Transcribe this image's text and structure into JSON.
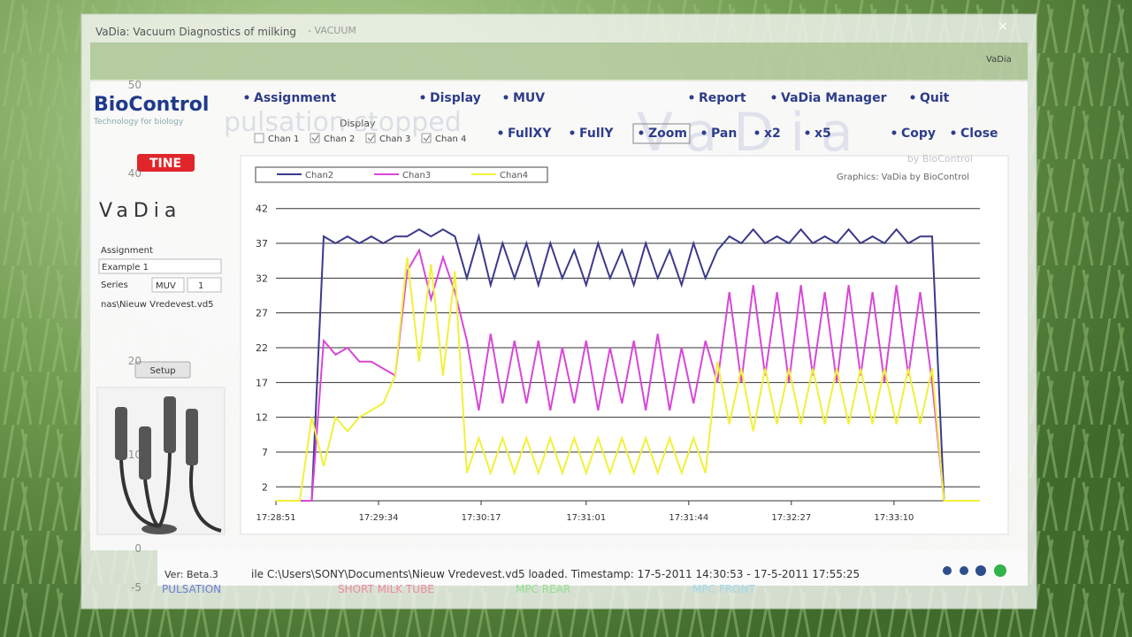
{
  "window": {
    "title": "VaDia: Vacuum Diagnostics of milking",
    "subtitle": "- VACUUM",
    "corner": "VaDia",
    "menu": [
      "Assignment",
      "Display",
      "MUV",
      "Report",
      "VaDia Manager",
      "Quit"
    ],
    "toolbar": [
      "FullXY",
      "FullY",
      "Zoom",
      "Pan",
      "x2",
      "x5",
      "Copy",
      "Close"
    ],
    "display": {
      "label": "Display",
      "channels": [
        "Chan 1",
        "Chan 2",
        "Chan 3",
        "Chan 4"
      ]
    },
    "sidebar": {
      "brand": "BioControl",
      "tagline": "Technology for biology",
      "partner": "TINE",
      "product": "VaDia",
      "assignment_label": "Assignment",
      "assignment_value": "Example 1",
      "series_label": "Series",
      "series_type": "MUV",
      "series_number": "1",
      "file": "nas\\Nieuw Vredevest.vd5",
      "setup": "Setup"
    },
    "status": {
      "version": "Ver: Beta.3",
      "message": "ile C:\\Users\\SONY\\Documents\\Nieuw Vredevest.vd5 loaded. Timestamp: 17-5-2011 14:30:53 - 17-5-2011 17:55:25"
    },
    "credit": "Graphics: VaDia by BioControl",
    "watermark_sub": "by BioControl"
  },
  "overlay": {
    "caption": "pulsation stopped",
    "labels": [
      "PULSATION",
      "SHORT MILK TUBE",
      "MPC REAR",
      "MPC FRONT"
    ],
    "ticks": [
      "50",
      "40",
      "20",
      "10",
      "0",
      "-5"
    ]
  },
  "chart_data": {
    "type": "line",
    "x": [
      "17:28:51",
      "17:28:56",
      "17:29:01",
      "17:29:06",
      "17:29:11",
      "17:29:16",
      "17:29:21",
      "17:29:26",
      "17:29:31",
      "17:29:36",
      "17:29:41",
      "17:29:46",
      "17:29:51",
      "17:29:56",
      "17:30:01",
      "17:30:06",
      "17:30:11",
      "17:30:16",
      "17:30:21",
      "17:30:26",
      "17:30:31",
      "17:30:36",
      "17:30:41",
      "17:30:46",
      "17:30:51",
      "17:30:56",
      "17:31:01",
      "17:31:06",
      "17:31:11",
      "17:31:16",
      "17:31:21",
      "17:31:26",
      "17:31:31",
      "17:31:36",
      "17:31:41",
      "17:31:46",
      "17:31:51",
      "17:31:56",
      "17:32:01",
      "17:32:06",
      "17:32:11",
      "17:32:16",
      "17:32:21",
      "17:32:26",
      "17:32:31",
      "17:32:36",
      "17:32:41",
      "17:32:46",
      "17:32:51",
      "17:32:56",
      "17:33:01",
      "17:33:06",
      "17:33:11",
      "17:33:16",
      "17:33:21",
      "17:33:26",
      "17:33:31",
      "17:33:36",
      "17:33:41",
      "17:33:46"
    ],
    "series": [
      {
        "name": "Chan2",
        "color": "#3b3a8c",
        "values": [
          0,
          0,
          0,
          0,
          38,
          37,
          38,
          37,
          38,
          37,
          38,
          38,
          39,
          38,
          39,
          38,
          32,
          38,
          31,
          37,
          32,
          37,
          31,
          37,
          32,
          36,
          31,
          37,
          32,
          36,
          31,
          37,
          32,
          36,
          31,
          37,
          32,
          36,
          38,
          37,
          39,
          37,
          38,
          37,
          39,
          37,
          38,
          37,
          39,
          37,
          38,
          37,
          39,
          37,
          38,
          38,
          0,
          0,
          0,
          0
        ]
      },
      {
        "name": "Chan3",
        "color": "#d946d9",
        "values": [
          0,
          0,
          0,
          0,
          23,
          21,
          22,
          20,
          20,
          19,
          18,
          33,
          36,
          29,
          35,
          30,
          23,
          13,
          24,
          14,
          23,
          14,
          23,
          13,
          22,
          14,
          23,
          13,
          22,
          14,
          23,
          13,
          24,
          13,
          22,
          14,
          23,
          17,
          30,
          17,
          31,
          18,
          30,
          17,
          31,
          18,
          30,
          17,
          31,
          18,
          30,
          17,
          31,
          18,
          30,
          17,
          0,
          0,
          0,
          0
        ]
      },
      {
        "name": "Chan4",
        "color": "#f2f03a",
        "values": [
          0,
          0,
          0,
          12,
          5,
          12,
          10,
          12,
          13,
          14,
          18,
          35,
          20,
          34,
          18,
          33,
          4,
          9,
          4,
          9,
          4,
          9,
          4,
          9,
          4,
          9,
          4,
          9,
          4,
          9,
          4,
          9,
          4,
          9,
          4,
          9,
          4,
          20,
          11,
          19,
          10,
          19,
          11,
          19,
          11,
          19,
          11,
          19,
          11,
          19,
          11,
          19,
          11,
          19,
          11,
          19,
          0,
          0,
          0,
          0
        ]
      }
    ],
    "xlim": [
      "17:28:51",
      "17:33:46"
    ],
    "xticks": [
      "17:28:51",
      "17:29:34",
      "17:30:17",
      "17:31:01",
      "17:31:44",
      "17:32:27",
      "17:33:10"
    ],
    "ylim": [
      0,
      44
    ],
    "yticks": [
      2,
      7,
      12,
      17,
      22,
      27,
      32,
      37,
      42
    ],
    "grid": true
  }
}
